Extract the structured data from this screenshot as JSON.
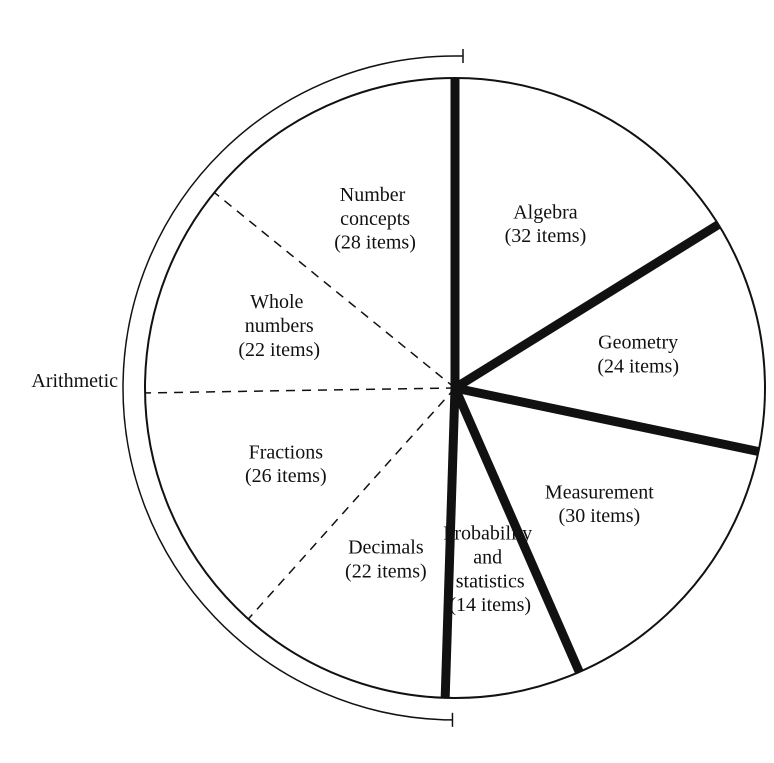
{
  "chart_data": {
    "type": "pie",
    "categories": [
      "Algebra",
      "Geometry",
      "Measurement",
      "Probability and statistics",
      "Decimals",
      "Fractions",
      "Whole numbers",
      "Number concepts"
    ],
    "values": [
      32,
      24,
      30,
      14,
      22,
      26,
      22,
      28
    ],
    "value_labels": [
      "(32 items)",
      "(24 items)",
      "(30 items)",
      "(14 items)",
      "(22 items)",
      "(26 items)",
      "(22 items)",
      "(28 items)"
    ],
    "groups": [
      null,
      null,
      null,
      null,
      "Arithmetic",
      "Arithmetic",
      "Arithmetic",
      "Arithmetic"
    ],
    "color": "#ffffff"
  }
}
